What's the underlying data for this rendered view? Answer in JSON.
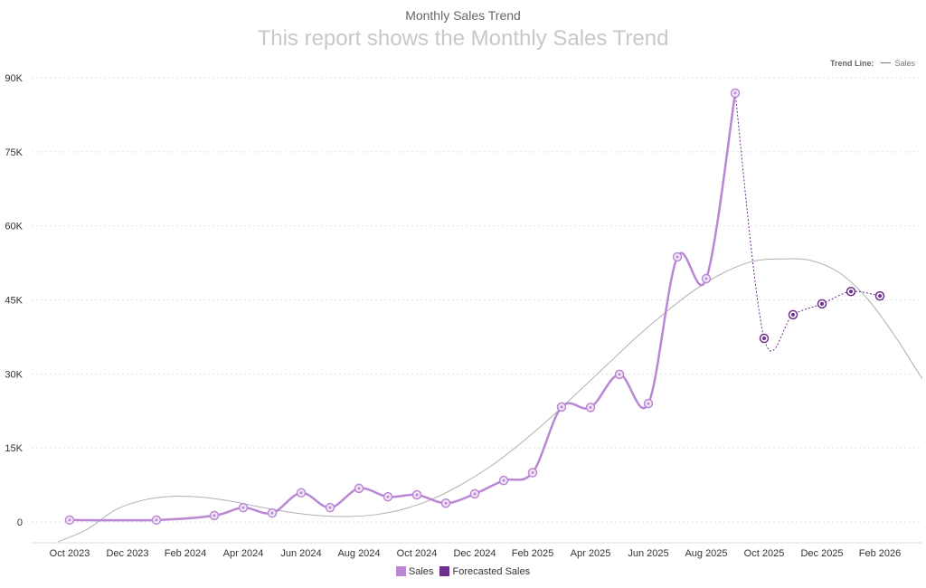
{
  "chart_data": {
    "type": "line",
    "title": "Monthly Sales Trend",
    "subtitle": "This report shows the Monthly Sales Trend",
    "trend_legend": {
      "label": "Trend Line:",
      "series": "Sales"
    },
    "ylim": [
      0,
      90000
    ],
    "yticks": [
      0,
      15000,
      30000,
      45000,
      60000,
      75000,
      90000
    ],
    "ytick_labels": [
      "0",
      "15K",
      "30K",
      "45K",
      "60K",
      "75K",
      "90K"
    ],
    "xtick_labels": [
      "Oct 2023",
      "Dec 2023",
      "Feb 2024",
      "Apr 2024",
      "Jun 2024",
      "Aug 2024",
      "Oct 2024",
      "Dec 2024",
      "Feb 2025",
      "Apr 2025",
      "Jun 2025",
      "Aug 2025",
      "Oct 2025",
      "Dec 2025",
      "Feb 2026"
    ],
    "grid": true,
    "legend_position": "bottom",
    "colors": {
      "sales": "#b987d4",
      "forecast": "#6e2f8f",
      "trend": "#b0b0b0"
    },
    "series": [
      {
        "name": "Sales",
        "x": [
          "Oct 2023",
          "Jan 2024",
          "Mar 2024",
          "Apr 2024",
          "May 2024",
          "Jun 2024",
          "Jul 2024",
          "Aug 2024",
          "Sep 2024",
          "Oct 2024",
          "Nov 2024",
          "Dec 2024",
          "Jan 2025",
          "Feb 2025",
          "Mar 2025",
          "Apr 2025",
          "May 2025",
          "Jun 2025",
          "Jul 2025",
          "Aug 2025",
          "Sep 2025"
        ],
        "values": [
          400,
          400,
          1300,
          2900,
          1800,
          5900,
          2900,
          6800,
          5100,
          5500,
          3800,
          5700,
          8400,
          10000,
          23300,
          23200,
          29900,
          24000,
          53700,
          49300,
          86900
        ]
      },
      {
        "name": "Forecasted Sales",
        "x": [
          "Oct 2025",
          "Nov 2025",
          "Dec 2025",
          "Jan 2026",
          "Feb 2026"
        ],
        "values": [
          37200,
          42000,
          44200,
          46700,
          45800
        ]
      }
    ],
    "trend": {
      "name": "Sales",
      "month_index_start": -0.4,
      "values": [
        -4000,
        -1500,
        2500,
        4500,
        5200,
        5000,
        4200,
        3000,
        2000,
        1300,
        1100,
        1500,
        2700,
        4800,
        7800,
        11500,
        16000,
        21000,
        26500,
        32000,
        37500,
        42500,
        47000,
        50500,
        52800,
        53300,
        53000,
        50500,
        45000,
        37000,
        28000,
        22500
      ]
    }
  }
}
